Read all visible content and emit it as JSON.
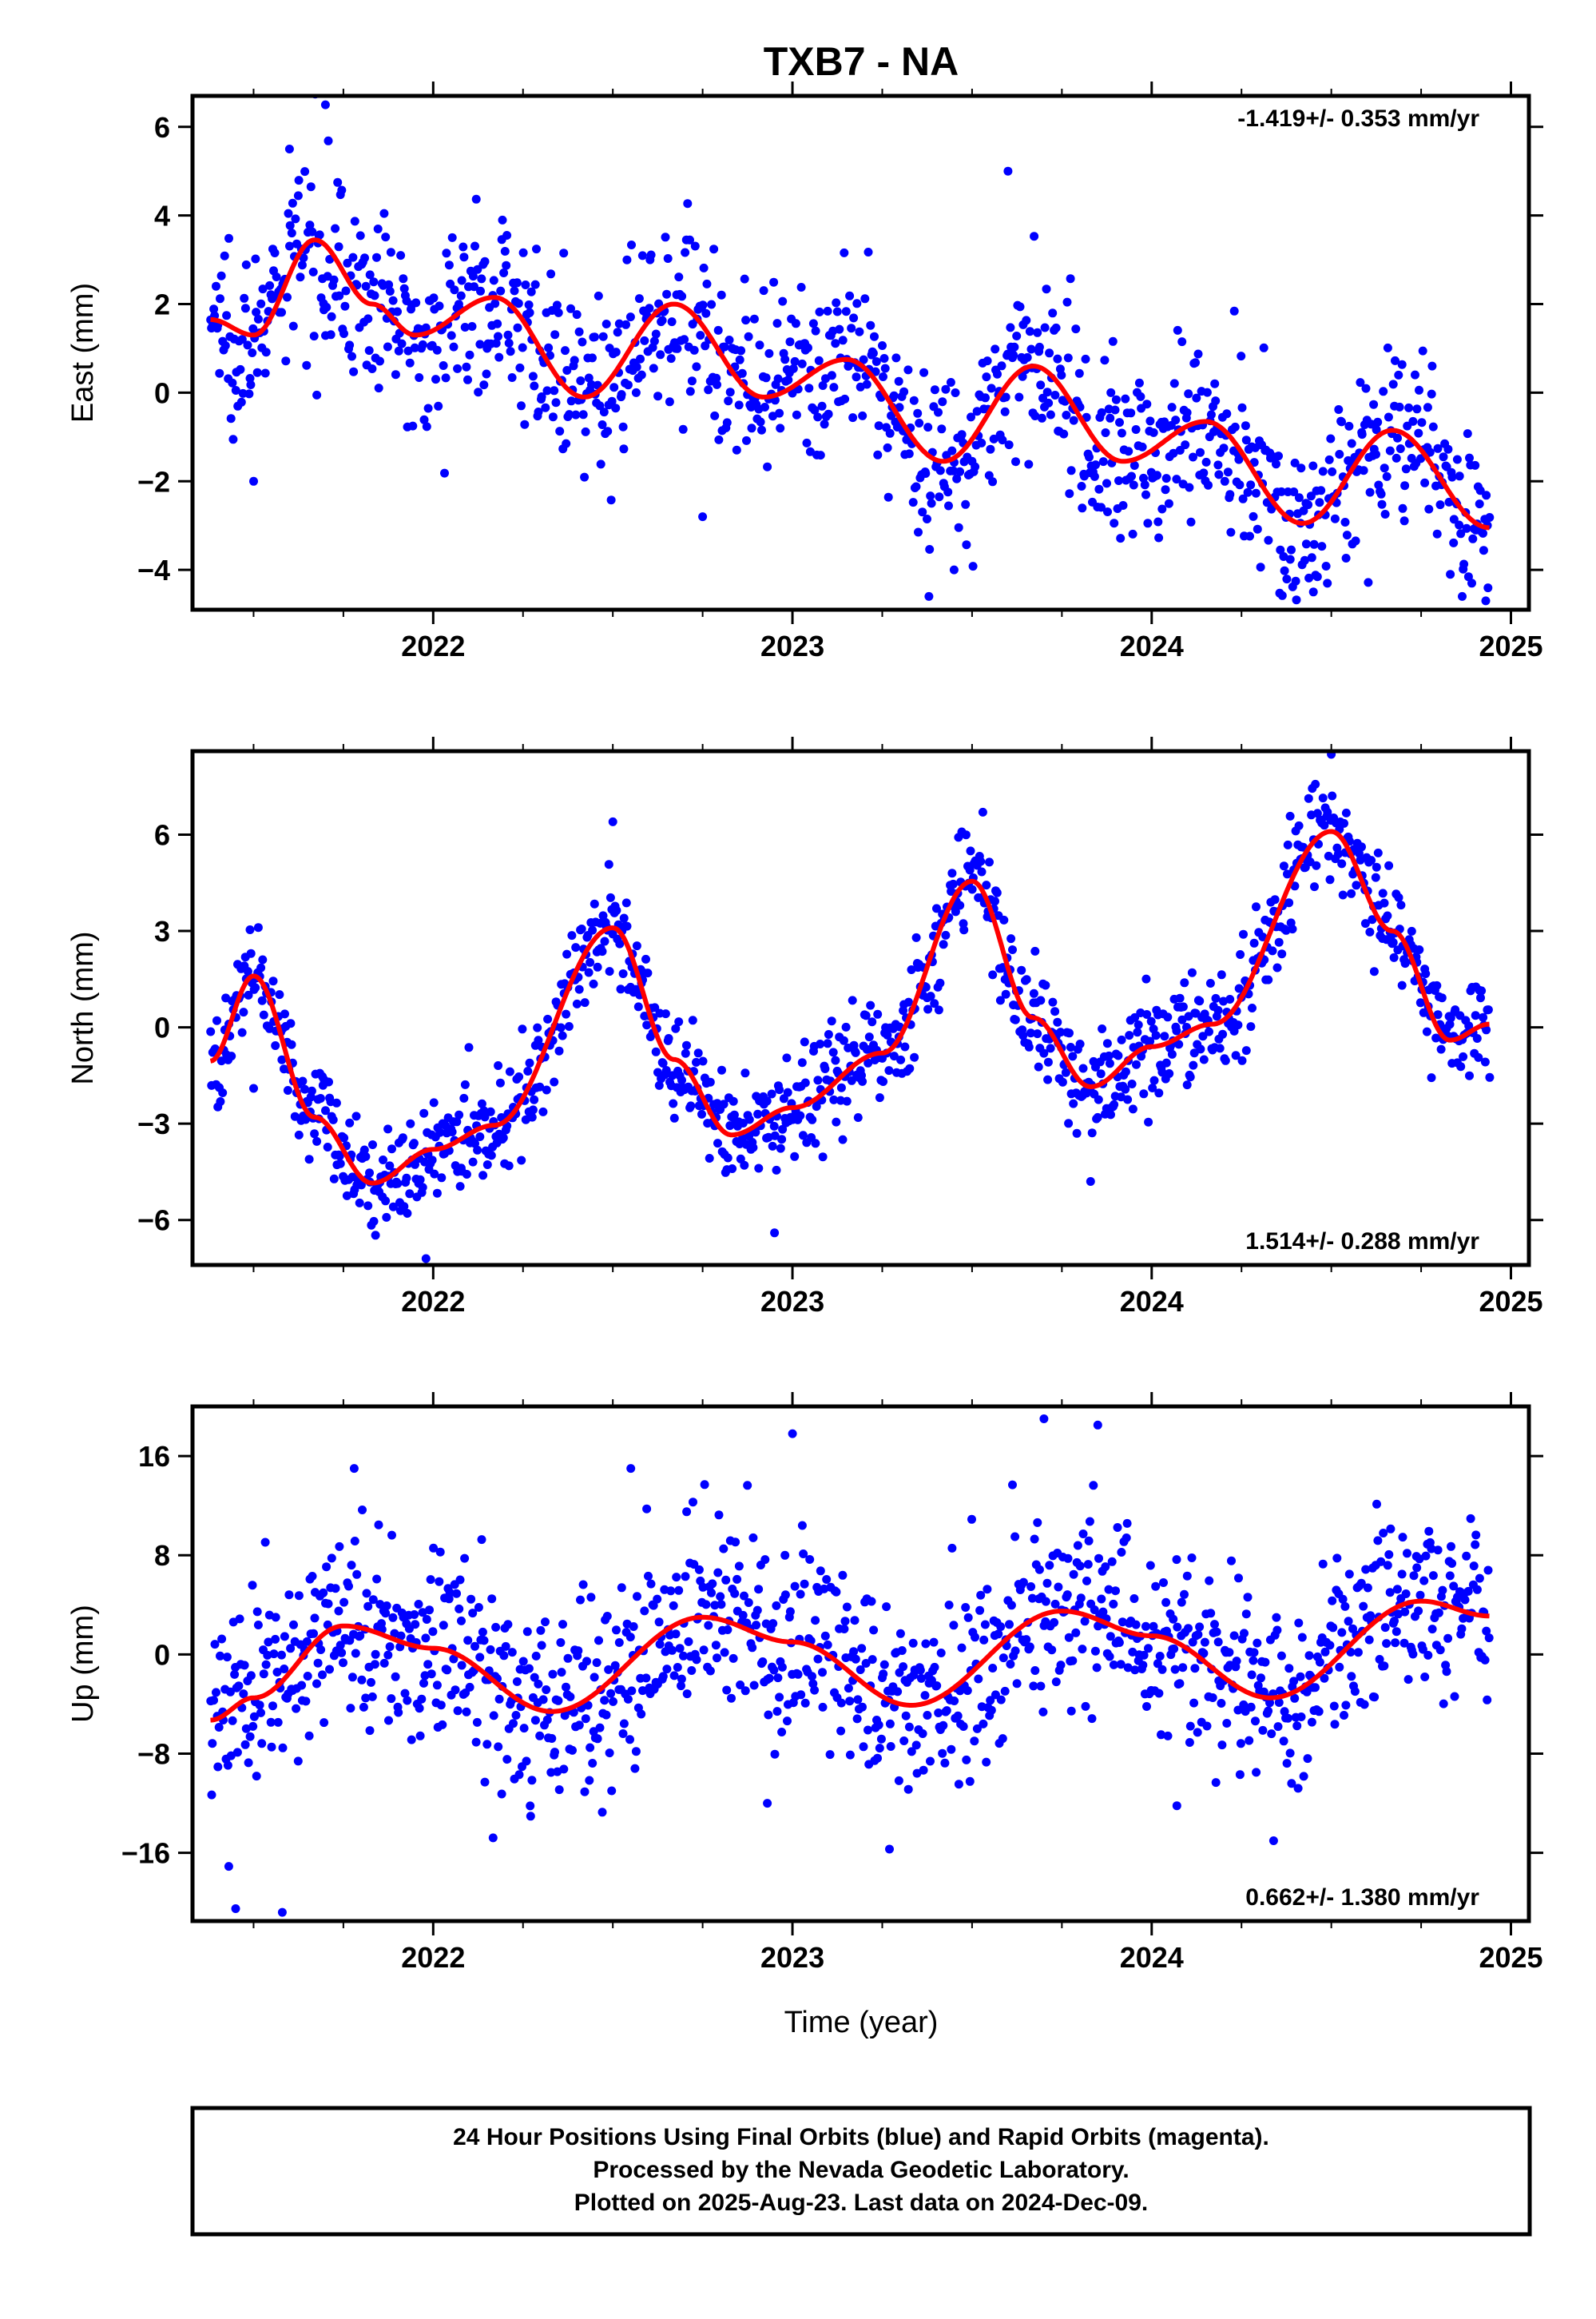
{
  "title": "TXB7 - NA",
  "xlabel": "Time (year)",
  "caption": [
    "24 Hour Positions Using Final Orbits (blue) and Rapid Orbits (magenta).",
    "Processed by the Nevada Geodetic Laboratory.",
    "Plotted on 2025-Aug-23. Last data on 2024-Dec-09."
  ],
  "colors": {
    "points": "#0000ff",
    "fit": "#ff0000",
    "frame": "#000000"
  },
  "chart_data": [
    {
      "type": "scatter",
      "ylabel": "East (mm)",
      "rate_text": "-1.419+/- 0.353 mm/yr",
      "rate_position": "top-right",
      "xlim": [
        2021.33,
        2025.05
      ],
      "ylim": [
        -4.9,
        6.7
      ],
      "x_ticks": [
        2022,
        2023,
        2024,
        2025
      ],
      "y_ticks": [
        -4,
        -2,
        0,
        2,
        4,
        6
      ],
      "data_start": 2021.38,
      "data_end": 2024.94,
      "series": [
        {
          "type": "line",
          "x": [
            2021.38,
            2021.5,
            2021.67,
            2021.83,
            2021.95,
            2022.17,
            2022.42,
            2022.67,
            2022.92,
            2023.15,
            2023.42,
            2023.67,
            2023.92,
            2024.15,
            2024.42,
            2024.67,
            2024.94
          ],
          "values": [
            1.65,
            1.3,
            3.45,
            2.0,
            1.3,
            2.15,
            -0.1,
            2.0,
            -0.1,
            0.75,
            -1.55,
            0.6,
            -1.55,
            -0.65,
            -2.95,
            -0.85,
            -3.05
          ]
        },
        {
          "type": "scatter",
          "model": {
            "trend": -1.419,
            "offset": 0.7,
            "annual_sin": -0.3,
            "annual_cos": -1.3,
            "semi_sin": 0.2,
            "semi_cos": 0.4,
            "noise": 1.0
          },
          "outliers": [
            [
              2021.7,
              6.5
            ],
            [
              2021.6,
              5.5
            ],
            [
              2022.75,
              -2.8
            ],
            [
              2023.38,
              -4.6
            ],
            [
              2023.6,
              5.0
            ],
            [
              2024.93,
              -4.7
            ],
            [
              2024.45,
              -4.5
            ],
            [
              2021.5,
              -2.0
            ],
            [
              2023.45,
              -4.0
            ]
          ]
        }
      ]
    },
    {
      "type": "scatter",
      "ylabel": "North (mm)",
      "rate_text": "1.514+/- 0.288 mm/yr",
      "rate_position": "bottom-right",
      "xlim": [
        2021.33,
        2025.05
      ],
      "ylim": [
        -7.4,
        8.6
      ],
      "x_ticks": [
        2022,
        2023,
        2024,
        2025
      ],
      "y_ticks": [
        -6,
        -3,
        0,
        3,
        6
      ],
      "data_start": 2021.38,
      "data_end": 2024.94,
      "series": [
        {
          "type": "line",
          "x": [
            2021.38,
            2021.5,
            2021.67,
            2021.83,
            2022.0,
            2022.17,
            2022.5,
            2022.67,
            2022.83,
            2023.0,
            2023.25,
            2023.5,
            2023.67,
            2023.83,
            2024.0,
            2024.17,
            2024.5,
            2024.67,
            2024.83,
            2024.94
          ],
          "values": [
            -1.05,
            1.6,
            -2.8,
            -4.85,
            -3.8,
            -3.05,
            3.1,
            -1.0,
            -3.35,
            -2.5,
            -0.8,
            4.55,
            0.3,
            -1.85,
            -0.6,
            0.1,
            6.1,
            3.0,
            -0.4,
            0.1
          ]
        },
        {
          "type": "scatter",
          "model": {
            "trend": 1.514,
            "offset": -2.6,
            "annual_sin": 3.8,
            "annual_cos": 0.5,
            "semi_sin": -1.0,
            "semi_cos": -0.5,
            "noise": 0.8
          },
          "outliers": [
            [
              2021.5,
              -1.9
            ],
            [
              2022.95,
              -6.4
            ],
            [
              2021.98,
              -7.2
            ],
            [
              2023.83,
              -4.8
            ],
            [
              2024.5,
              8.5
            ],
            [
              2023.53,
              6.7
            ],
            [
              2022.5,
              6.4
            ]
          ]
        }
      ]
    },
    {
      "type": "scatter",
      "ylabel": "Up (mm)",
      "rate_text": "0.662+/- 1.380 mm/yr",
      "rate_position": "bottom-right",
      "xlim": [
        2021.33,
        2025.05
      ],
      "ylim": [
        -21.5,
        20.0
      ],
      "x_ticks": [
        2022,
        2023,
        2024,
        2025
      ],
      "y_ticks": [
        -16,
        -8,
        0,
        8,
        16
      ],
      "data_start": 2021.38,
      "data_end": 2024.94,
      "series": [
        {
          "type": "line",
          "x": [
            2021.38,
            2021.5,
            2021.75,
            2022.0,
            2022.33,
            2022.75,
            2023.0,
            2023.33,
            2023.75,
            2024.0,
            2024.33,
            2024.75,
            2024.94
          ],
          "values": [
            -5.3,
            -3.5,
            2.3,
            0.5,
            -4.6,
            3.0,
            1.0,
            -4.1,
            3.5,
            1.5,
            -3.5,
            4.3,
            3.1
          ]
        },
        {
          "type": "scatter",
          "model": {
            "trend": 0.662,
            "offset": -0.5,
            "annual_sin": 0.0,
            "annual_cos": 3.5,
            "semi_sin": 0.0,
            "semi_cos": 0.0,
            "noise": 4.0
          },
          "outliers": [
            [
              2021.45,
              -20.5
            ],
            [
              2021.58,
              -20.8
            ],
            [
              2022.55,
              15.0
            ],
            [
              2023.0,
              17.8
            ],
            [
              2023.7,
              19.0
            ],
            [
              2023.85,
              18.5
            ],
            [
              2021.78,
              15.0
            ],
            [
              2023.27,
              -15.7
            ],
            [
              2022.93,
              -12.0
            ],
            [
              2024.07,
              -12.2
            ]
          ]
        }
      ]
    }
  ]
}
